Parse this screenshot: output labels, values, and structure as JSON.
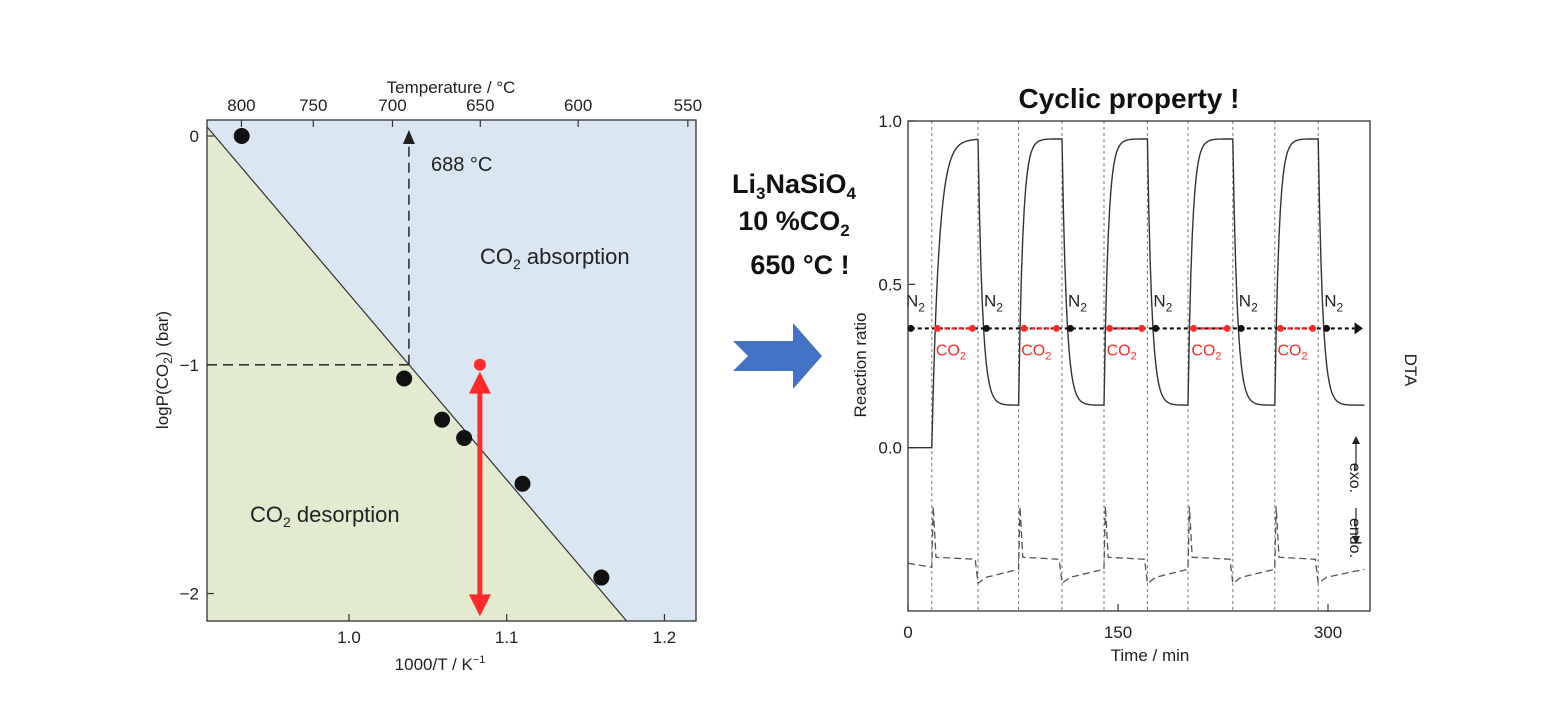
{
  "chart_data": [
    {
      "type": "scatter",
      "xlabel": "1000/T / K",
      "xlabel_sup": "−1",
      "ylabel": "logP(CO",
      "ylabel_sub": "2",
      "ylabel_tail": ") (bar)",
      "top_xlabel": "Temperature / °C",
      "xlim": [
        0.91,
        1.22
      ],
      "ylim": [
        -2.12,
        0.07
      ],
      "x_ticks": [
        {
          "v": 1.0,
          "label": "1.0"
        },
        {
          "v": 1.1,
          "label": "1.1"
        },
        {
          "v": 1.2,
          "label": "1.2"
        }
      ],
      "y_ticks": [
        {
          "v": 0,
          "label": "0"
        },
        {
          "v": -1,
          "label": "−1"
        },
        {
          "v": -2,
          "label": "−2"
        }
      ],
      "top_ticks": [
        {
          "c": 800,
          "label": "800"
        },
        {
          "c": 750,
          "label": "750"
        },
        {
          "c": 700,
          "label": "700"
        },
        {
          "c": 650,
          "label": "650"
        },
        {
          "c": 600,
          "label": "600"
        },
        {
          "c": 550,
          "label": "550"
        }
      ],
      "points": [
        {
          "x": 0.932,
          "y": 0.0
        },
        {
          "x": 1.035,
          "y": -1.06
        },
        {
          "x": 1.059,
          "y": -1.24
        },
        {
          "x": 1.073,
          "y": -1.32
        },
        {
          "x": 1.11,
          "y": -1.52
        },
        {
          "x": 1.16,
          "y": -1.93
        }
      ],
      "boundary_line": [
        {
          "x": 0.91,
          "y": 0.04
        },
        {
          "x": 1.176,
          "y": -2.12
        }
      ],
      "marker_point": {
        "x": 1.083,
        "y": -1.0,
        "color": "#ff2a2a"
      },
      "arrow_range": {
        "x": 1.083,
        "y_from": -1.03,
        "y_to": -2.1,
        "color": "#ff2a2a"
      },
      "guide_point": {
        "x": 1.038,
        "y": -1.0
      },
      "guide_label": "688 °C",
      "region_upper": {
        "label": "CO",
        "sub": "2",
        "tail": " absorption",
        "color": "#dae7f3"
      },
      "region_lower": {
        "label": "CO",
        "sub": "2",
        "tail": " desorption",
        "color": "#e2ebcf"
      }
    },
    {
      "type": "line",
      "title": "Cyclic property !",
      "xlabel": "Time / min",
      "ylabel": "Reaction ratio",
      "right_label": "DTA",
      "xlim": [
        0,
        330
      ],
      "ylim": [
        -0.5,
        1.0
      ],
      "x_ticks": [
        {
          "v": 0,
          "label": "0"
        },
        {
          "v": 150,
          "label": "150"
        },
        {
          "v": 300,
          "label": "300"
        }
      ],
      "y_ticks": [
        {
          "v": 0,
          "label": "0.0"
        },
        {
          "v": 0.5,
          "label": "0.5"
        },
        {
          "v": 1.0,
          "label": "1.0"
        }
      ],
      "switch_times": [
        17,
        50,
        79,
        110,
        140,
        171,
        200,
        232,
        262,
        293
      ],
      "cycle_plateau": 0.945,
      "cycle_floor": 0.13,
      "gas_n2": "N",
      "gas_co2": "CO",
      "gas_sub": "2",
      "bar_y": 0.365,
      "dta_note_exo": "exo.",
      "dta_note_endo": "endo.",
      "co2_color": "#ff2a2a"
    }
  ],
  "species": {
    "pre": "Li",
    "s1": "3",
    "mid": "NaSiO",
    "s2": "4"
  },
  "condition_gas": {
    "pre": "10 %CO",
    "s1": "2"
  },
  "condition_temp": "650 °C !",
  "arrow_color": "#4472c4"
}
